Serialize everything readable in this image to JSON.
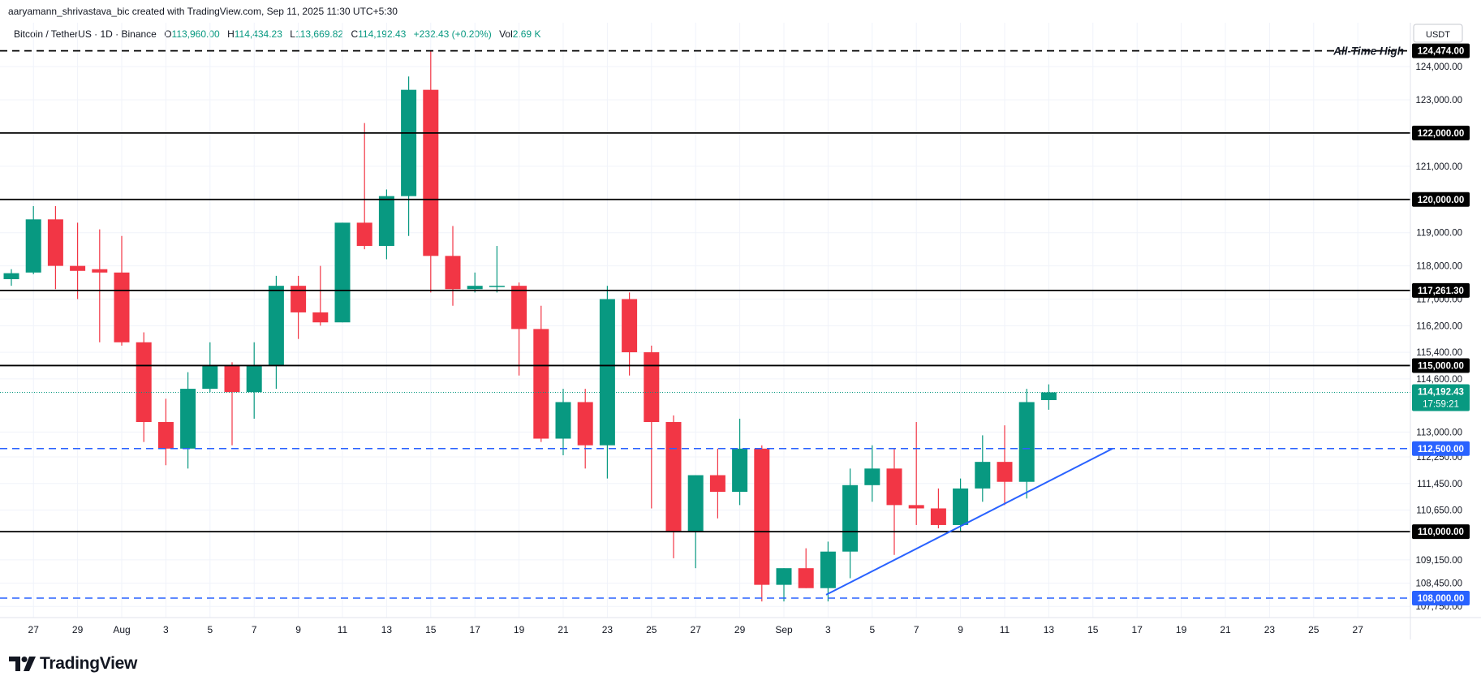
{
  "header": {
    "credit": "aaryamann_shrivastava_bic created with TradingView.com, Sep 11, 2025 11:30 UTC+5:30",
    "symbol": "Bitcoin / TetherUS · 1D · Binance",
    "open_label": "O",
    "open": "113,960.00",
    "high_label": "H",
    "high": "114,434.23",
    "low_label": "L",
    "low": "113,669.82",
    "close_label": "C",
    "close": "114,192.43",
    "change": "+232.43 (+0.20%)",
    "vol_label": "Vol",
    "vol": "2.69 K"
  },
  "currency": "USDT",
  "brand": "TradingView",
  "colors": {
    "up": "#089981",
    "down": "#f23645",
    "grid": "#f0f3fa",
    "blue": "#2962ff",
    "black": "#000000"
  },
  "chart_data": {
    "type": "candlestick",
    "x_start": "Jul 26, 2025",
    "x_ticks": [
      "27",
      "29",
      "Aug",
      "3",
      "5",
      "7",
      "9",
      "11",
      "13",
      "15",
      "17",
      "19",
      "21",
      "23",
      "25",
      "27",
      "29",
      "Sep",
      "3",
      "5",
      "7",
      "9",
      "11",
      "13",
      "15",
      "17",
      "19",
      "21",
      "23",
      "25",
      "27"
    ],
    "y_ticks": [
      "124,000.00",
      "123,000.00",
      "121,000.00",
      "119,000.00",
      "118,000.00",
      "117,000.00",
      "116,200.00",
      "115,400.00",
      "114,600.00",
      "113,000.00",
      "112,250.00",
      "111,450.00",
      "110,650.00",
      "109,150.00",
      "108,450.00",
      "107,750.00"
    ],
    "y_tick_values": [
      124000,
      123000,
      121000,
      119000,
      118000,
      117000,
      116200,
      115400,
      114600,
      113000,
      112250,
      111450,
      110650,
      109150,
      108450,
      107750
    ],
    "ylim": [
      107550,
      124900
    ],
    "candles": [
      {
        "o": 117600,
        "h": 117900,
        "l": 117400,
        "c": 117780
      },
      {
        "o": 117800,
        "h": 119800,
        "l": 117750,
        "c": 119400
      },
      {
        "o": 119400,
        "h": 119800,
        "l": 117300,
        "c": 118000
      },
      {
        "o": 118000,
        "h": 119300,
        "l": 117000,
        "c": 117850
      },
      {
        "o": 117900,
        "h": 119100,
        "l": 115700,
        "c": 117800
      },
      {
        "o": 117800,
        "h": 118900,
        "l": 115600,
        "c": 115700
      },
      {
        "o": 115700,
        "h": 116000,
        "l": 112700,
        "c": 113300
      },
      {
        "o": 113300,
        "h": 114000,
        "l": 112000,
        "c": 112500
      },
      {
        "o": 112500,
        "h": 114800,
        "l": 111900,
        "c": 114300
      },
      {
        "o": 114300,
        "h": 115700,
        "l": 114200,
        "c": 115000
      },
      {
        "o": 115000,
        "h": 115100,
        "l": 112600,
        "c": 114200
      },
      {
        "o": 114200,
        "h": 115700,
        "l": 113400,
        "c": 115000
      },
      {
        "o": 115000,
        "h": 117700,
        "l": 114300,
        "c": 117400
      },
      {
        "o": 117400,
        "h": 117700,
        "l": 115800,
        "c": 116600
      },
      {
        "o": 116600,
        "h": 118000,
        "l": 116200,
        "c": 116300
      },
      {
        "o": 116300,
        "h": 119300,
        "l": 116300,
        "c": 119300
      },
      {
        "o": 119300,
        "h": 122300,
        "l": 118500,
        "c": 118600
      },
      {
        "o": 118600,
        "h": 120300,
        "l": 118200,
        "c": 120100
      },
      {
        "o": 120100,
        "h": 123700,
        "l": 118900,
        "c": 123300
      },
      {
        "o": 123300,
        "h": 124474,
        "l": 117200,
        "c": 118300
      },
      {
        "o": 118300,
        "h": 119200,
        "l": 116800,
        "c": 117300
      },
      {
        "o": 117300,
        "h": 117800,
        "l": 117200,
        "c": 117400
      },
      {
        "o": 117400,
        "h": 118600,
        "l": 117200,
        "c": 117400
      },
      {
        "o": 117400,
        "h": 117500,
        "l": 114700,
        "c": 116100
      },
      {
        "o": 116100,
        "h": 116800,
        "l": 112700,
        "c": 112800
      },
      {
        "o": 112800,
        "h": 114300,
        "l": 112300,
        "c": 113900
      },
      {
        "o": 113900,
        "h": 114300,
        "l": 111900,
        "c": 112600
      },
      {
        "o": 112600,
        "h": 117400,
        "l": 111600,
        "c": 117000
      },
      {
        "o": 117000,
        "h": 117200,
        "l": 114700,
        "c": 115400
      },
      {
        "o": 115400,
        "h": 115600,
        "l": 110700,
        "c": 113300
      },
      {
        "o": 113300,
        "h": 113500,
        "l": 109200,
        "c": 110000
      },
      {
        "o": 110000,
        "h": 111700,
        "l": 108900,
        "c": 111700
      },
      {
        "o": 111700,
        "h": 112500,
        "l": 110400,
        "c": 111200
      },
      {
        "o": 111200,
        "h": 113400,
        "l": 110800,
        "c": 112500
      },
      {
        "o": 112500,
        "h": 112600,
        "l": 107900,
        "c": 108400
      },
      {
        "o": 108400,
        "h": 108900,
        "l": 107900,
        "c": 108900
      },
      {
        "o": 108900,
        "h": 109500,
        "l": 108300,
        "c": 108300
      },
      {
        "o": 108300,
        "h": 109700,
        "l": 107900,
        "c": 109400
      },
      {
        "o": 109400,
        "h": 111900,
        "l": 108600,
        "c": 111400
      },
      {
        "o": 111400,
        "h": 112600,
        "l": 110900,
        "c": 111900
      },
      {
        "o": 111900,
        "h": 112500,
        "l": 109300,
        "c": 110800
      },
      {
        "o": 110800,
        "h": 113300,
        "l": 110200,
        "c": 110700
      },
      {
        "o": 110700,
        "h": 111300,
        "l": 110100,
        "c": 110200
      },
      {
        "o": 110200,
        "h": 111600,
        "l": 110000,
        "c": 111300
      },
      {
        "o": 111300,
        "h": 112900,
        "l": 110900,
        "c": 112100
      },
      {
        "o": 112100,
        "h": 113200,
        "l": 110800,
        "c": 111500
      },
      {
        "o": 111500,
        "h": 114300,
        "l": 111000,
        "c": 113900
      },
      {
        "o": 113960,
        "h": 114434.23,
        "l": 113669.82,
        "c": 114192.43
      }
    ],
    "horizontal_lines": [
      {
        "price": 124474,
        "label": "124,474.00",
        "style": "dashed",
        "color": "#000000",
        "annotation": "All-Time High"
      },
      {
        "price": 122000,
        "label": "122,000.00",
        "style": "solid",
        "color": "#000000"
      },
      {
        "price": 120000,
        "label": "120,000.00",
        "style": "solid",
        "color": "#000000"
      },
      {
        "price": 117261.3,
        "label": "117,261.30",
        "style": "solid",
        "color": "#000000"
      },
      {
        "price": 115000,
        "label": "115,000.00",
        "style": "solid",
        "color": "#000000"
      },
      {
        "price": 112500,
        "label": "112,500.00",
        "style": "dashed",
        "color": "#2962ff"
      },
      {
        "price": 110000,
        "label": "110,000.00",
        "style": "solid",
        "color": "#000000"
      },
      {
        "price": 108000,
        "label": "108,000.00",
        "style": "dashed",
        "color": "#2962ff"
      }
    ],
    "trendline": {
      "start": {
        "date": "Sep 1",
        "price": 108100
      },
      "end": {
        "date": "Sep 14",
        "price": 112500
      },
      "color": "#2962ff"
    },
    "last_price": {
      "label": "114,192.43",
      "price": 114192.43,
      "countdown": "17:59:21"
    }
  }
}
